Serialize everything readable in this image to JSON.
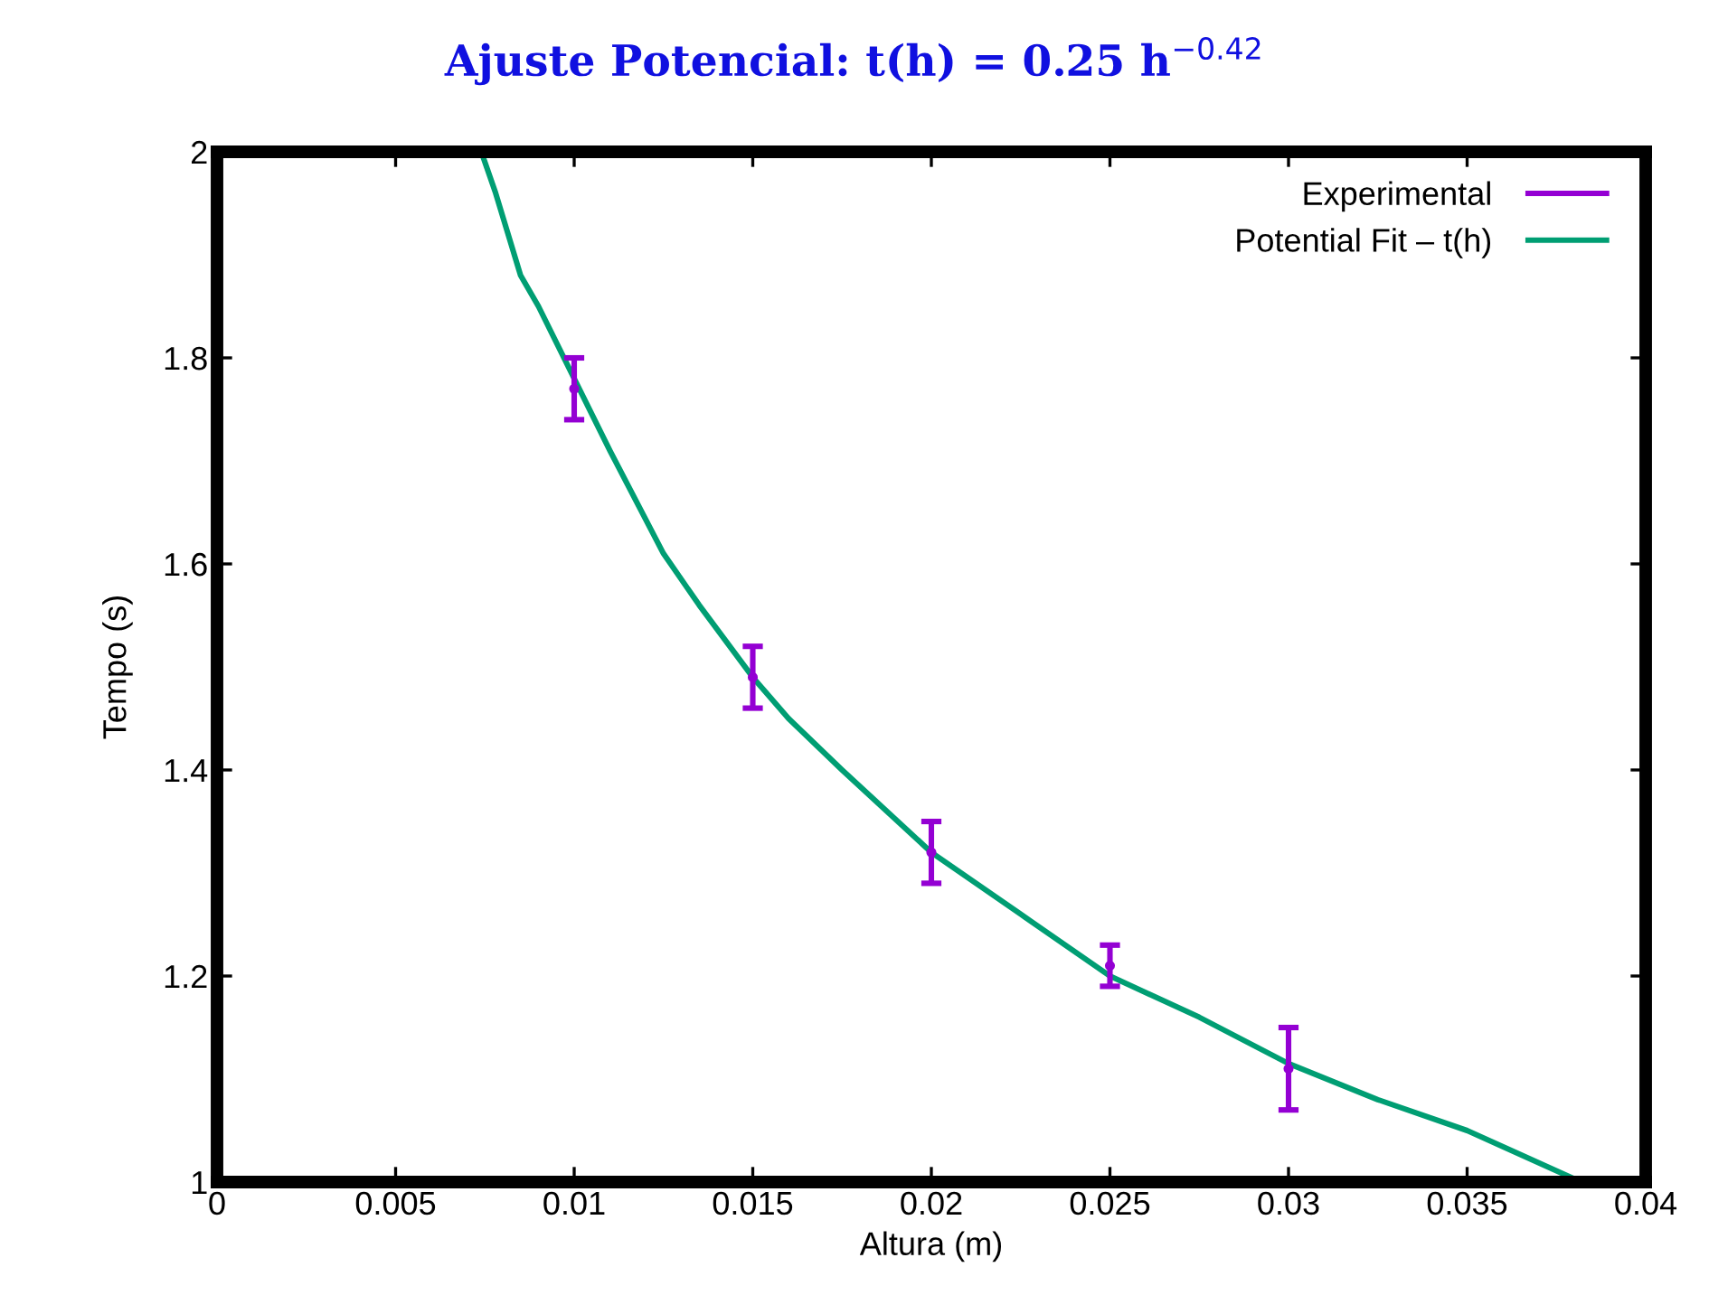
{
  "chart_data": {
    "type": "line",
    "title": "Ajuste Potencial: t(h) = 0.25 h$^{−0.42}$",
    "xlabel": "Altura (m)",
    "ylabel": "Tempo (s)",
    "series": [
      {
        "name": "Experimental",
        "type": "scatter",
        "color": "#9400d3",
        "x": [
          0.01,
          0.015,
          0.02,
          0.025,
          0.03
        ],
        "values": [
          1.77,
          1.49,
          1.32,
          1.21,
          1.11
        ],
        "errors": [
          0.03,
          0.03,
          0.03,
          0.02,
          0.04
        ],
        "marker": "circle"
      },
      {
        "name": "Potential Fit – t(h)",
        "color": "#009e73",
        "x": [
          0.0074,
          0.0078,
          0.0085,
          0.009,
          0.01,
          0.011,
          0.0125,
          0.0135,
          0.015,
          0.016,
          0.0175,
          0.02,
          0.0225,
          0.025,
          0.0275,
          0.03,
          0.0325,
          0.035,
          0.0382
        ],
        "values": [
          2.0,
          1.96,
          1.88,
          1.85,
          1.78,
          1.71,
          1.61,
          1.56,
          1.49,
          1.45,
          1.4,
          1.32,
          1.26,
          1.2,
          1.16,
          1.115,
          1.08,
          1.05,
          1.0
        ]
      }
    ],
    "xlim": [
      0,
      0.04
    ],
    "xticks": [
      0,
      0.005,
      0.01,
      0.015,
      0.02,
      0.025,
      0.03,
      0.035,
      0.04
    ],
    "ylim": [
      1,
      2
    ],
    "yticks": [
      1,
      1.2,
      1.4,
      1.6,
      1.8,
      2
    ],
    "legend": "top right",
    "grid": false
  }
}
